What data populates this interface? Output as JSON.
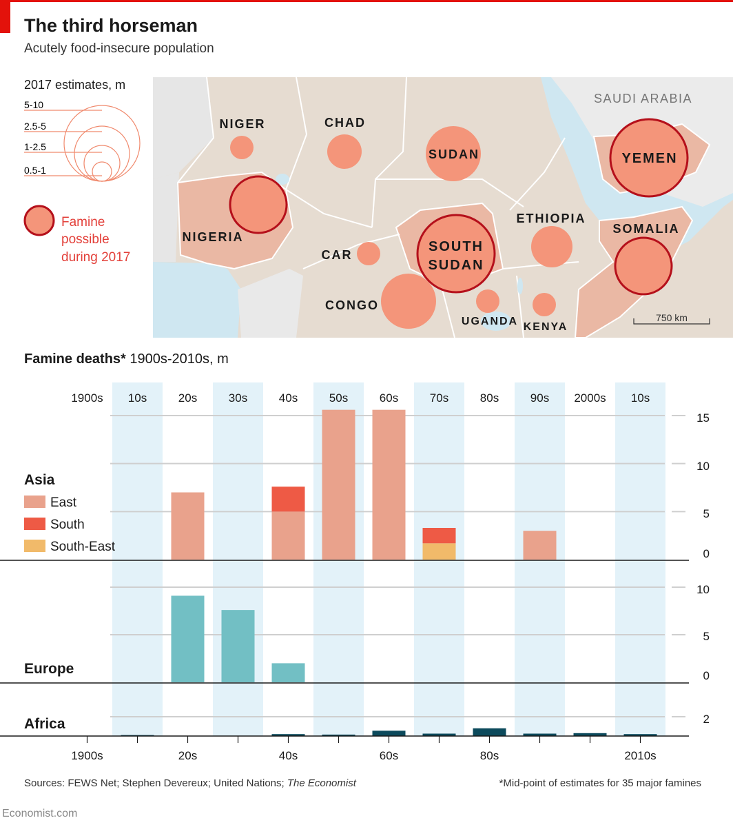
{
  "title": "The third horseman",
  "subtitle": "Acutely food-insecure population",
  "map": {
    "legend_title": "2017 estimates, m",
    "size_legend": [
      "5-10",
      "2.5-5",
      "1-2.5",
      "0.5-1"
    ],
    "famine_label_lines": [
      "Famine",
      "possible",
      "during 2017"
    ],
    "scale_label": "750 km",
    "region_labels": {
      "saudi": "SAUDI ARABIA"
    },
    "countries": [
      {
        "name": "NIGER",
        "famine": false
      },
      {
        "name": "CHAD",
        "famine": false
      },
      {
        "name": "SUDAN",
        "famine": false
      },
      {
        "name": "YEMEN",
        "famine": true
      },
      {
        "name": "NIGERIA",
        "famine": true
      },
      {
        "name": "ETHIOPIA",
        "famine": false
      },
      {
        "name": "SOMALIA",
        "famine": true
      },
      {
        "name": "SOUTH SUDAN",
        "famine": true
      },
      {
        "name": "CAR",
        "famine": false
      },
      {
        "name": "CONGO",
        "famine": false
      },
      {
        "name": "UGANDA",
        "famine": false
      },
      {
        "name": "KENYA",
        "famine": false
      }
    ]
  },
  "chart_heading": {
    "bold": "Famine deaths*",
    "rest": " 1900s-2010s, m"
  },
  "chart_data": {
    "type": "bar",
    "title": "Famine deaths* 1900s-2010s, m",
    "decades": [
      "1900s",
      "10s",
      "20s",
      "30s",
      "40s",
      "50s",
      "60s",
      "70s",
      "80s",
      "90s",
      "2000s",
      "10s"
    ],
    "bottom_ticks": [
      "1900s",
      "20s",
      "40s",
      "60s",
      "80s",
      "2010s"
    ],
    "colors": {
      "east": "#e9a28c",
      "south": "#ee5a45",
      "southeast": "#f1ba6a",
      "europe": "#72bfc4",
      "africa": "#0c4a5c",
      "band": "#e3f2f9"
    },
    "panels": [
      {
        "name": "Asia",
        "ylim": [
          0,
          15
        ],
        "yticks": [
          "0",
          "5",
          "10",
          "15"
        ],
        "series": [
          {
            "name": "East",
            "values": [
              0,
              0,
              7,
              0,
              5,
              15.6,
              15.6,
              0,
              0,
              3,
              0,
              0
            ]
          },
          {
            "name": "South",
            "values": [
              0,
              0,
              0,
              0,
              2.6,
              0,
              0,
              1.6,
              0,
              0,
              0,
              0
            ]
          },
          {
            "name": "South-East",
            "values": [
              0,
              0,
              0,
              0,
              0,
              0,
              0,
              1.7,
              0,
              0,
              0,
              0
            ]
          }
        ]
      },
      {
        "name": "Europe",
        "ylim": [
          0,
          10
        ],
        "yticks": [
          "0",
          "5",
          "10"
        ],
        "series": [
          {
            "name": "Europe",
            "values": [
              0,
              0,
              9.1,
              7.6,
              2,
              0,
              0,
              0,
              0,
              0,
              0,
              0
            ]
          }
        ]
      },
      {
        "name": "Africa",
        "ylim": [
          0,
          2
        ],
        "yticks": [
          "2"
        ],
        "series": [
          {
            "name": "Africa",
            "values": [
              0,
              0.1,
              0,
              0,
              0.2,
              0.15,
              0.55,
              0.25,
              0.8,
              0.25,
              0.3,
              0.2
            ]
          }
        ]
      }
    ]
  },
  "sources_text": "Sources: FEWS Net; Stephen Devereux; United Nations; ",
  "sources_italic": "The Economist",
  "footnote": "*Mid-point of estimates for 35 major famines",
  "brand": "Economist.com"
}
